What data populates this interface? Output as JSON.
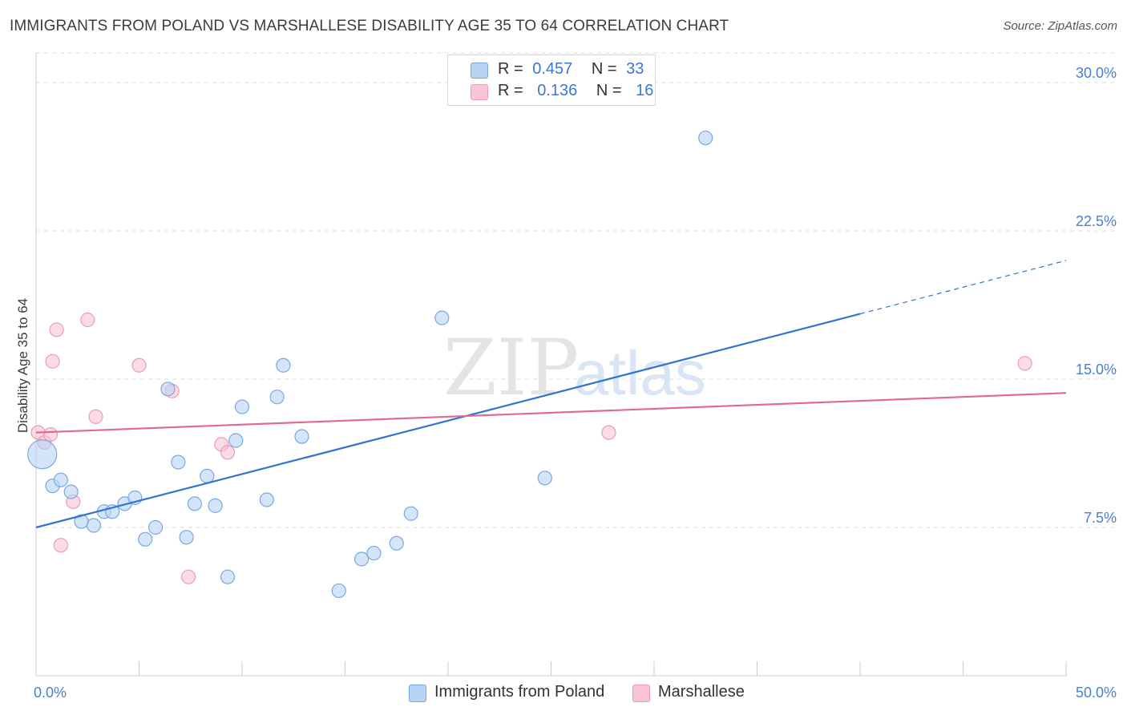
{
  "title": "IMMIGRANTS FROM POLAND VS MARSHALLESE DISABILITY AGE 35 TO 64 CORRELATION CHART",
  "source": "Source: ZipAtlas.com",
  "watermark": {
    "zip": "ZIP",
    "atlas": "atlas"
  },
  "legend": {
    "poland": {
      "r_label": "R =",
      "r_value": "0.457",
      "n_label": "N =",
      "n_value": "33"
    },
    "marshallese": {
      "r_label": "R =",
      "r_value": "0.136",
      "n_label": "N =",
      "n_value": "16"
    }
  },
  "colors": {
    "poland_fill": "#b8d4f5",
    "poland_stroke": "#7aa8e0",
    "poland_line": "#2f74d0",
    "marshallese_fill": "#f9c4d3",
    "marshallese_stroke": "#ee9ab3",
    "marshallese_line": "#e06a93",
    "grid": "#dddddd",
    "tick_label": "#4a7fcf"
  },
  "chart_data": {
    "type": "scatter",
    "title": "IMMIGRANTS FROM POLAND VS MARSHALLESE DISABILITY AGE 35 TO 64 CORRELATION CHART",
    "xlabel": "",
    "ylabel": "Disability Age 35 to 64",
    "xlim": [
      0,
      50
    ],
    "ylim": [
      0,
      31.5
    ],
    "x_tick_labels": [
      "0.0%",
      "50.0%"
    ],
    "y_ticks": [
      7.5,
      15.0,
      22.5,
      30.0
    ],
    "y_tick_labels": [
      "7.5%",
      "15.0%",
      "22.5%",
      "30.0%"
    ],
    "grid": true,
    "legend_position": "top-center",
    "series": [
      {
        "name": "Immigrants from Poland",
        "points": [
          [
            0.3,
            11.2,
            "large"
          ],
          [
            0.8,
            9.6
          ],
          [
            1.2,
            9.9
          ],
          [
            1.7,
            9.3
          ],
          [
            2.2,
            7.8
          ],
          [
            2.8,
            7.6
          ],
          [
            3.3,
            8.3
          ],
          [
            3.7,
            8.3
          ],
          [
            4.3,
            8.7
          ],
          [
            4.8,
            9.0
          ],
          [
            5.3,
            6.9
          ],
          [
            5.8,
            7.5
          ],
          [
            6.4,
            14.5
          ],
          [
            6.9,
            10.8
          ],
          [
            7.3,
            7.0
          ],
          [
            7.7,
            8.7
          ],
          [
            8.3,
            10.1
          ],
          [
            8.7,
            8.6
          ],
          [
            9.3,
            5.0
          ],
          [
            9.7,
            11.9
          ],
          [
            10.0,
            13.6
          ],
          [
            11.2,
            8.9
          ],
          [
            11.7,
            14.1
          ],
          [
            12.0,
            15.7
          ],
          [
            12.9,
            12.1
          ],
          [
            14.7,
            4.3
          ],
          [
            15.8,
            5.9
          ],
          [
            16.4,
            6.2
          ],
          [
            17.5,
            6.7
          ],
          [
            18.2,
            8.2
          ],
          [
            19.7,
            18.1
          ],
          [
            24.7,
            10.0
          ],
          [
            32.5,
            27.2
          ]
        ],
        "trend": {
          "x": [
            0,
            40
          ],
          "y": [
            7.5,
            18.3
          ]
        },
        "trend_extension": {
          "x": [
            40,
            50
          ],
          "y": [
            18.3,
            21.0
          ]
        }
      },
      {
        "name": "Marshallese",
        "points": [
          [
            0.1,
            12.3
          ],
          [
            0.4,
            11.8
          ],
          [
            0.7,
            12.2
          ],
          [
            0.8,
            15.9
          ],
          [
            1.0,
            17.5
          ],
          [
            1.2,
            6.6
          ],
          [
            1.8,
            8.8
          ],
          [
            2.5,
            18.0
          ],
          [
            2.9,
            13.1
          ],
          [
            5.0,
            15.7
          ],
          [
            6.6,
            14.4
          ],
          [
            7.4,
            5.0
          ],
          [
            9.0,
            11.7
          ],
          [
            9.3,
            11.3
          ],
          [
            27.8,
            12.3
          ],
          [
            48.0,
            15.8
          ]
        ],
        "trend": {
          "x": [
            0,
            50
          ],
          "y": [
            12.3,
            14.3
          ]
        }
      }
    ]
  }
}
